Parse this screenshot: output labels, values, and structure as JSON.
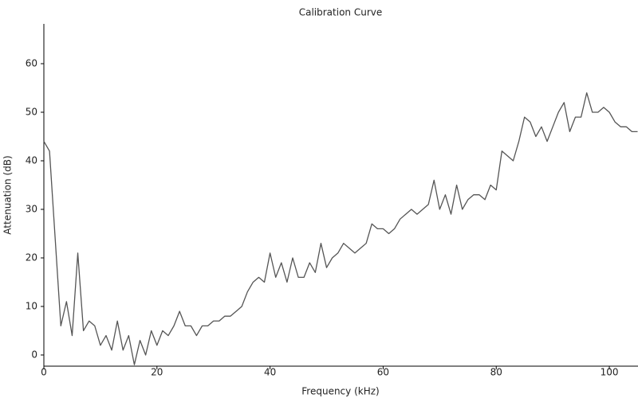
{
  "chart_data": {
    "type": "line",
    "title": "Calibration Curve",
    "x_label": "Frequency (kHz)",
    "y_label": "Attenuation (dB)",
    "x": [
      0,
      1,
      2,
      3,
      4,
      5,
      6,
      7,
      8,
      9,
      10,
      11,
      12,
      13,
      14,
      15,
      16,
      17,
      18,
      19,
      20,
      21,
      22,
      23,
      24,
      25,
      26,
      27,
      28,
      29,
      30,
      31,
      32,
      33,
      34,
      35,
      36,
      37,
      38,
      39,
      40,
      41,
      42,
      43,
      44,
      45,
      46,
      47,
      48,
      49,
      50,
      51,
      52,
      53,
      54,
      55,
      56,
      57,
      58,
      59,
      60,
      61,
      62,
      63,
      64,
      65,
      66,
      67,
      68,
      69,
      70,
      71,
      72,
      73,
      74,
      75,
      76,
      77,
      78,
      79,
      80,
      81,
      82,
      83,
      84,
      85,
      86,
      87,
      88,
      89,
      90,
      91,
      92,
      93,
      94,
      95,
      96,
      97,
      98,
      99,
      100,
      101,
      102,
      103,
      104,
      105
    ],
    "series": [
      {
        "name": "Attenuation",
        "color": "#555555",
        "values": [
          44,
          42,
          24,
          6,
          11,
          4,
          21,
          5,
          7,
          6,
          2,
          4,
          1,
          7,
          1,
          4,
          -2,
          3,
          0,
          5,
          2,
          5,
          4,
          6,
          9,
          6,
          6,
          4,
          6,
          6,
          7,
          7,
          8,
          8,
          9,
          10,
          13,
          15,
          16,
          15,
          21,
          16,
          19,
          15,
          20,
          16,
          16,
          19,
          17,
          23,
          18,
          20,
          21,
          23,
          22,
          21,
          22,
          23,
          27,
          26,
          26,
          25,
          26,
          28,
          29,
          30,
          29,
          30,
          31,
          36,
          30,
          33,
          29,
          35,
          30,
          32,
          33,
          33,
          32,
          35,
          34,
          42,
          41,
          40,
          44,
          49,
          48,
          45,
          47,
          44,
          47,
          50,
          52,
          46,
          49,
          49,
          54,
          50,
          50,
          51,
          50,
          48,
          47,
          47,
          46,
          46
        ]
      }
    ],
    "xlim": [
      0,
      105
    ],
    "ylim": [
      -2.3,
      68.2
    ],
    "xticks": [
      0,
      20,
      40,
      60,
      80,
      100
    ],
    "yticks": [
      0,
      10,
      20,
      30,
      40,
      50,
      60
    ],
    "grid": false
  }
}
